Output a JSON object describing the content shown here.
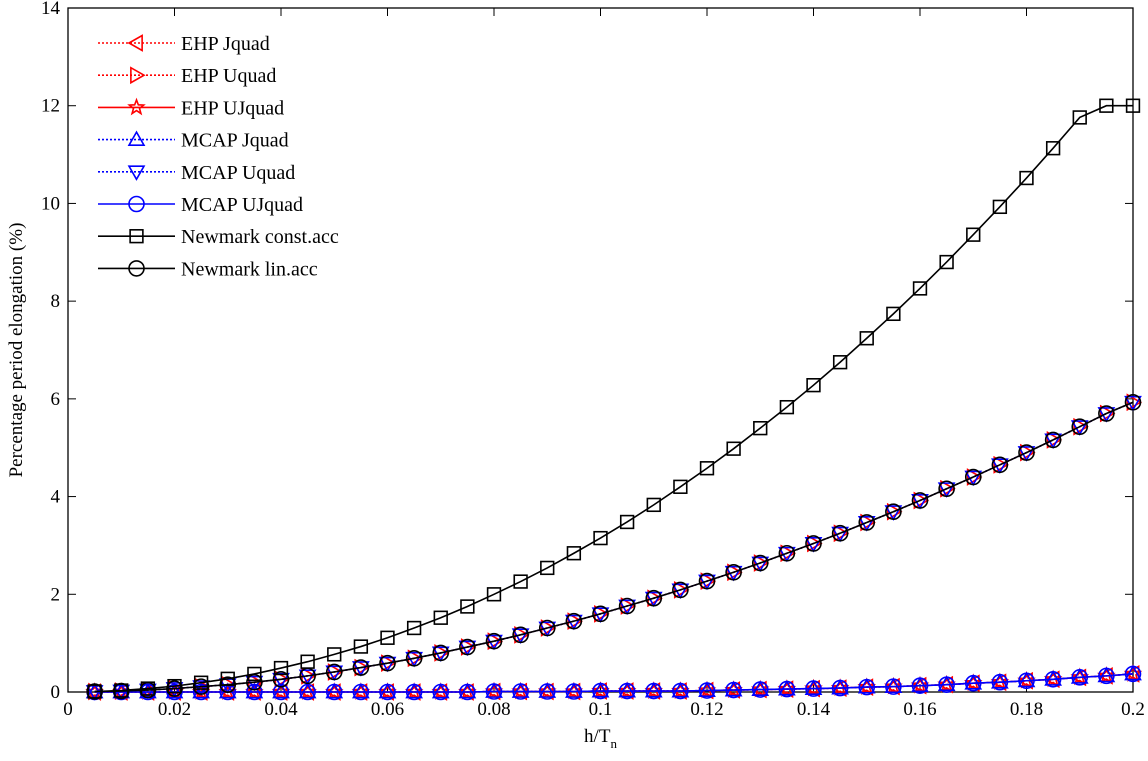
{
  "chart_data": {
    "type": "line",
    "title": "",
    "xlabel": "h/T",
    "xlabel_sub": "n",
    "ylabel": "Percentage period elongation (%)",
    "xlim": [
      0,
      0.2
    ],
    "ylim": [
      0,
      14
    ],
    "x_ticks": [
      0,
      0.02,
      0.04,
      0.06,
      0.08,
      0.1,
      0.12,
      0.14,
      0.16,
      0.18,
      0.2
    ],
    "x_tick_labels": [
      "0",
      "0.02",
      "0.04",
      "0.06",
      "0.08",
      "0.1",
      "0.12",
      "0.14",
      "0.16",
      "0.18",
      "0.2"
    ],
    "y_ticks": [
      0,
      2,
      4,
      6,
      8,
      10,
      12,
      14
    ],
    "y_tick_labels": [
      "0",
      "2",
      "4",
      "6",
      "8",
      "10",
      "12",
      "14"
    ],
    "grid": false,
    "legend_position": "top-left",
    "x": [
      0.005,
      0.01,
      0.015,
      0.02,
      0.025,
      0.03,
      0.035,
      0.04,
      0.045,
      0.05,
      0.055,
      0.06,
      0.065,
      0.07,
      0.075,
      0.08,
      0.085,
      0.09,
      0.095,
      0.1,
      0.105,
      0.11,
      0.115,
      0.12,
      0.125,
      0.13,
      0.135,
      0.14,
      0.145,
      0.15,
      0.155,
      0.16,
      0.165,
      0.17,
      0.175,
      0.18,
      0.185,
      0.19,
      0.195,
      0.2
    ],
    "series": [
      {
        "name": "EHP Jquad",
        "color": "#ff0000",
        "line_style": "dotted",
        "marker": "triangle-left",
        "values": [
          0.0,
          0.0,
          0.0,
          0.0,
          0.0,
          0.0,
          0.0,
          0.0,
          0.0,
          0.0,
          0.0,
          0.0,
          0.0,
          0.0,
          0.0,
          0.01,
          0.01,
          0.01,
          0.01,
          0.02,
          0.02,
          0.02,
          0.02,
          0.03,
          0.04,
          0.05,
          0.06,
          0.07,
          0.08,
          0.1,
          0.11,
          0.13,
          0.15,
          0.18,
          0.2,
          0.23,
          0.26,
          0.3,
          0.33,
          0.37
        ]
      },
      {
        "name": "EHP Uquad",
        "color": "#ff0000",
        "line_style": "dotted",
        "marker": "triangle-right",
        "values": [
          0.01,
          0.02,
          0.04,
          0.07,
          0.11,
          0.15,
          0.2,
          0.26,
          0.33,
          0.41,
          0.5,
          0.59,
          0.69,
          0.8,
          0.92,
          1.04,
          1.17,
          1.31,
          1.45,
          1.6,
          1.76,
          1.92,
          2.09,
          2.27,
          2.45,
          2.64,
          2.84,
          3.04,
          3.25,
          3.47,
          3.69,
          3.92,
          4.16,
          4.4,
          4.65,
          4.9,
          5.16,
          5.43,
          5.7,
          5.93
        ]
      },
      {
        "name": "EHP UJquad",
        "color": "#ff0000",
        "line_style": "solid",
        "marker": "star",
        "values": [
          0.0,
          0.0,
          0.0,
          0.0,
          0.0,
          0.0,
          0.0,
          0.0,
          0.0,
          0.0,
          0.0,
          0.0,
          0.0,
          0.0,
          0.0,
          0.01,
          0.01,
          0.01,
          0.01,
          0.02,
          0.02,
          0.02,
          0.02,
          0.03,
          0.04,
          0.05,
          0.06,
          0.07,
          0.08,
          0.1,
          0.11,
          0.13,
          0.15,
          0.18,
          0.2,
          0.23,
          0.26,
          0.3,
          0.33,
          0.37
        ]
      },
      {
        "name": "MCAP Jquad",
        "color": "#0000ff",
        "line_style": "dotted",
        "marker": "triangle-up",
        "values": [
          0.0,
          0.0,
          0.0,
          0.0,
          0.0,
          0.0,
          0.0,
          0.0,
          0.0,
          0.0,
          0.0,
          0.0,
          0.0,
          0.0,
          0.0,
          0.01,
          0.01,
          0.01,
          0.01,
          0.02,
          0.02,
          0.02,
          0.02,
          0.03,
          0.04,
          0.05,
          0.06,
          0.07,
          0.08,
          0.1,
          0.11,
          0.13,
          0.15,
          0.18,
          0.2,
          0.23,
          0.26,
          0.3,
          0.33,
          0.37
        ]
      },
      {
        "name": "MCAP Uquad",
        "color": "#0000ff",
        "line_style": "dotted",
        "marker": "triangle-down",
        "values": [
          0.01,
          0.02,
          0.04,
          0.07,
          0.11,
          0.15,
          0.2,
          0.26,
          0.33,
          0.41,
          0.5,
          0.59,
          0.69,
          0.8,
          0.92,
          1.04,
          1.17,
          1.31,
          1.45,
          1.6,
          1.76,
          1.92,
          2.09,
          2.27,
          2.45,
          2.64,
          2.84,
          3.04,
          3.25,
          3.47,
          3.69,
          3.92,
          4.16,
          4.4,
          4.65,
          4.9,
          5.16,
          5.43,
          5.7,
          5.93
        ]
      },
      {
        "name": "MCAP UJquad",
        "color": "#0000ff",
        "line_style": "solid",
        "marker": "circle",
        "values": [
          0.0,
          0.0,
          0.0,
          0.0,
          0.0,
          0.0,
          0.0,
          0.0,
          0.0,
          0.0,
          0.0,
          0.0,
          0.0,
          0.0,
          0.0,
          0.01,
          0.01,
          0.01,
          0.01,
          0.02,
          0.02,
          0.02,
          0.02,
          0.03,
          0.04,
          0.05,
          0.06,
          0.07,
          0.08,
          0.1,
          0.11,
          0.13,
          0.15,
          0.18,
          0.2,
          0.23,
          0.26,
          0.3,
          0.33,
          0.37
        ]
      },
      {
        "name": "Newmark const.acc",
        "color": "#000000",
        "line_style": "solid",
        "marker": "square",
        "values": [
          0.01,
          0.03,
          0.07,
          0.12,
          0.19,
          0.27,
          0.37,
          0.49,
          0.62,
          0.77,
          0.93,
          1.11,
          1.31,
          1.52,
          1.75,
          2.0,
          2.26,
          2.54,
          2.84,
          3.15,
          3.48,
          3.83,
          4.2,
          4.58,
          4.98,
          5.4,
          5.83,
          6.28,
          6.75,
          7.24,
          7.74,
          8.26,
          8.8,
          9.36,
          9.93,
          10.52,
          11.13,
          11.76,
          12.0,
          12.0
        ]
      },
      {
        "name": "Newmark lin.acc",
        "color": "#000000",
        "line_style": "solid",
        "marker": "circle",
        "values": [
          0.01,
          0.02,
          0.04,
          0.07,
          0.11,
          0.15,
          0.2,
          0.26,
          0.33,
          0.41,
          0.5,
          0.59,
          0.69,
          0.8,
          0.92,
          1.04,
          1.17,
          1.31,
          1.45,
          1.6,
          1.76,
          1.92,
          2.09,
          2.27,
          2.45,
          2.64,
          2.84,
          3.04,
          3.25,
          3.47,
          3.69,
          3.92,
          4.16,
          4.4,
          4.65,
          4.9,
          5.16,
          5.43,
          5.7,
          5.93
        ]
      }
    ]
  }
}
